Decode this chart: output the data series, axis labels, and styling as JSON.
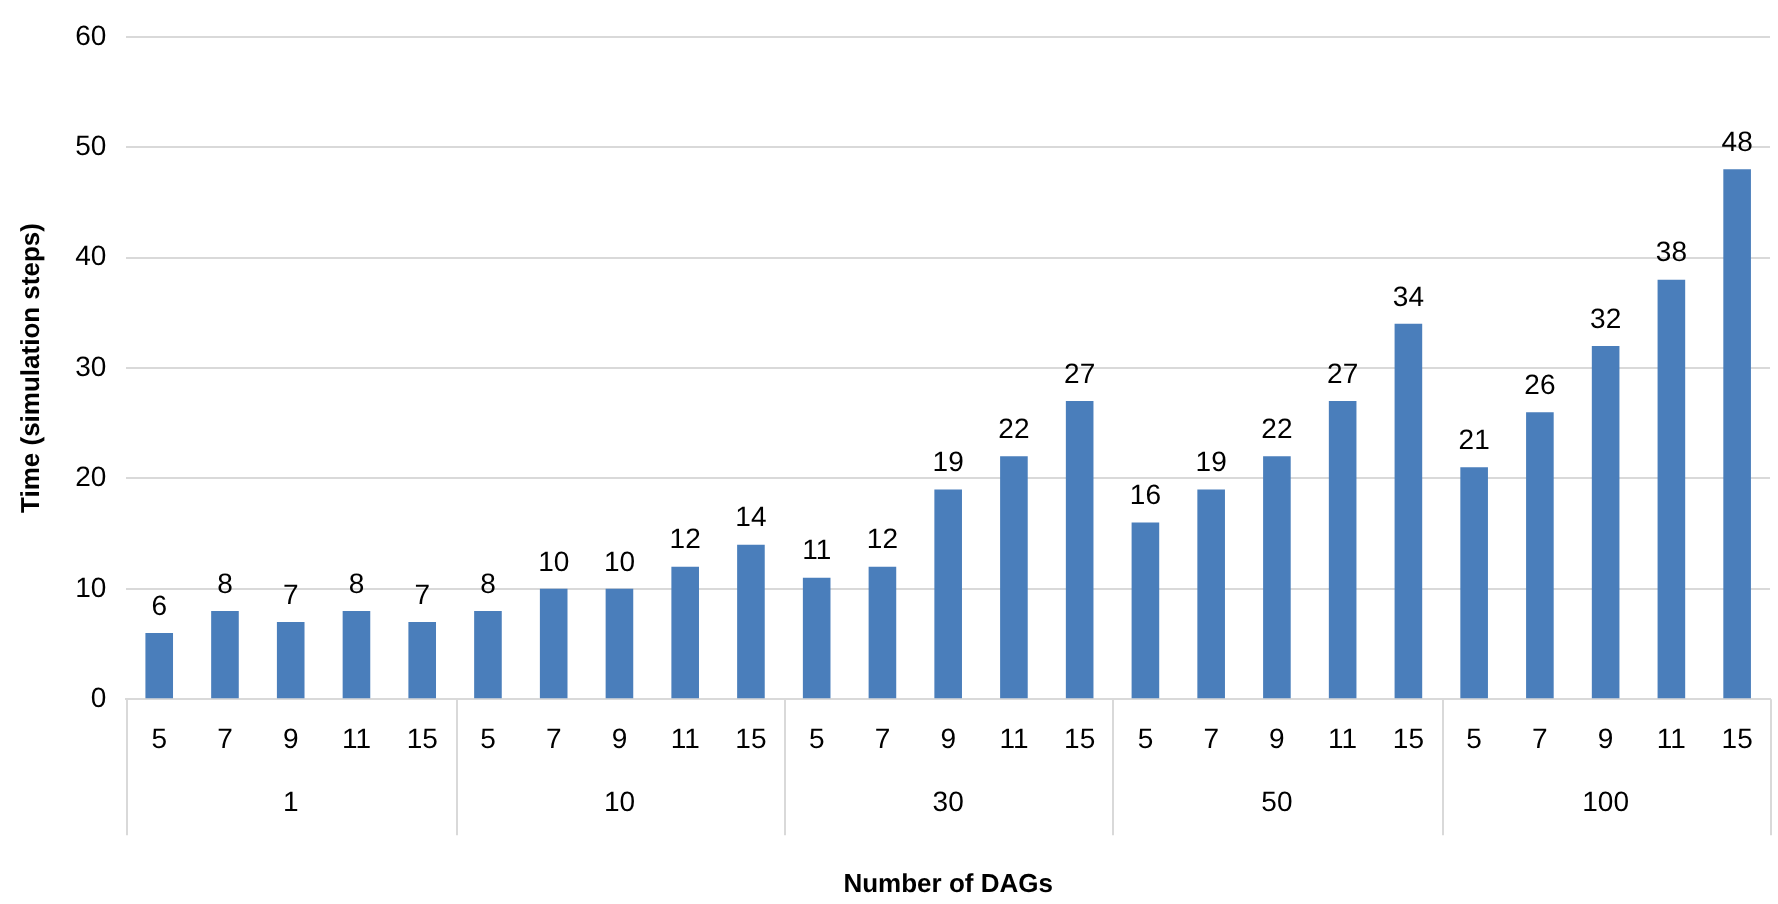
{
  "chart_data": {
    "type": "bar",
    "xlabel": "Number of DAGs",
    "ylabel": "Time (simulation steps)",
    "categories": [
      "5",
      "7",
      "9",
      "11",
      "15",
      "5",
      "7",
      "9",
      "11",
      "15",
      "5",
      "7",
      "9",
      "11",
      "15",
      "5",
      "7",
      "9",
      "11",
      "15",
      "5",
      "7",
      "9",
      "11",
      "15"
    ],
    "values": [
      6,
      8,
      7,
      8,
      7,
      8,
      10,
      10,
      12,
      14,
      11,
      12,
      19,
      22,
      27,
      16,
      19,
      22,
      27,
      34,
      21,
      26,
      32,
      38,
      48
    ],
    "color": "#4a7ebb",
    "ylim": [
      0,
      60
    ],
    "yticks": [
      0,
      10,
      20,
      30,
      40,
      50,
      60
    ],
    "grid": "y",
    "legend": false,
    "data_labels": true,
    "annotations": [
      "1",
      "10",
      "30",
      "50",
      "100"
    ]
  }
}
